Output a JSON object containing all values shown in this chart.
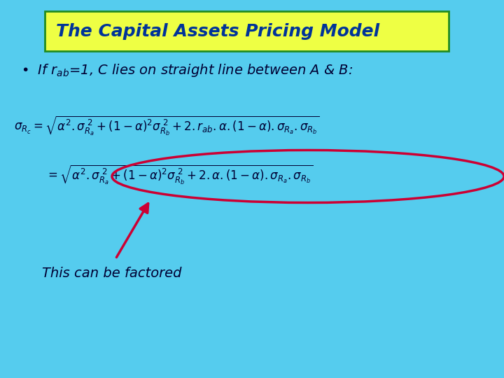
{
  "bg_color": "#55CCEE",
  "title_box_color": "#EEFF44",
  "title_box_edge_color": "#228B22",
  "title_text": "The Capital Assets Pricing Model",
  "title_text_color": "#003399",
  "bullet_line": "If r$_{ab}$=1, C lies on straight line between A & B:",
  "bullet_color": "#000033",
  "eq1": "$\\sigma_{R_c} = \\sqrt{\\alpha^2.\\sigma_{R_a}^{\\;2} + (1-\\alpha)^2\\sigma_{R_b}^{\\;2} + 2.r_{ab}.\\alpha.(1-\\alpha).\\sigma_{R_a}.\\sigma_{R_b}}$",
  "eq2": "$= \\sqrt{\\alpha^2.\\sigma_{R_a}^{\\;2} + (1-\\alpha)^2\\sigma_{R_b}^{\\;2} + 2.\\alpha.(1-\\alpha).\\sigma_{R_a}.\\sigma_{R_b}}$",
  "eq_color": "#000033",
  "ellipse_color": "#CC0033",
  "arrow_color": "#CC0033",
  "annotation_text": "This can be factored",
  "annotation_color": "#000033",
  "title_fontsize": 18,
  "bullet_fontsize": 14,
  "eq_fontsize": 12
}
